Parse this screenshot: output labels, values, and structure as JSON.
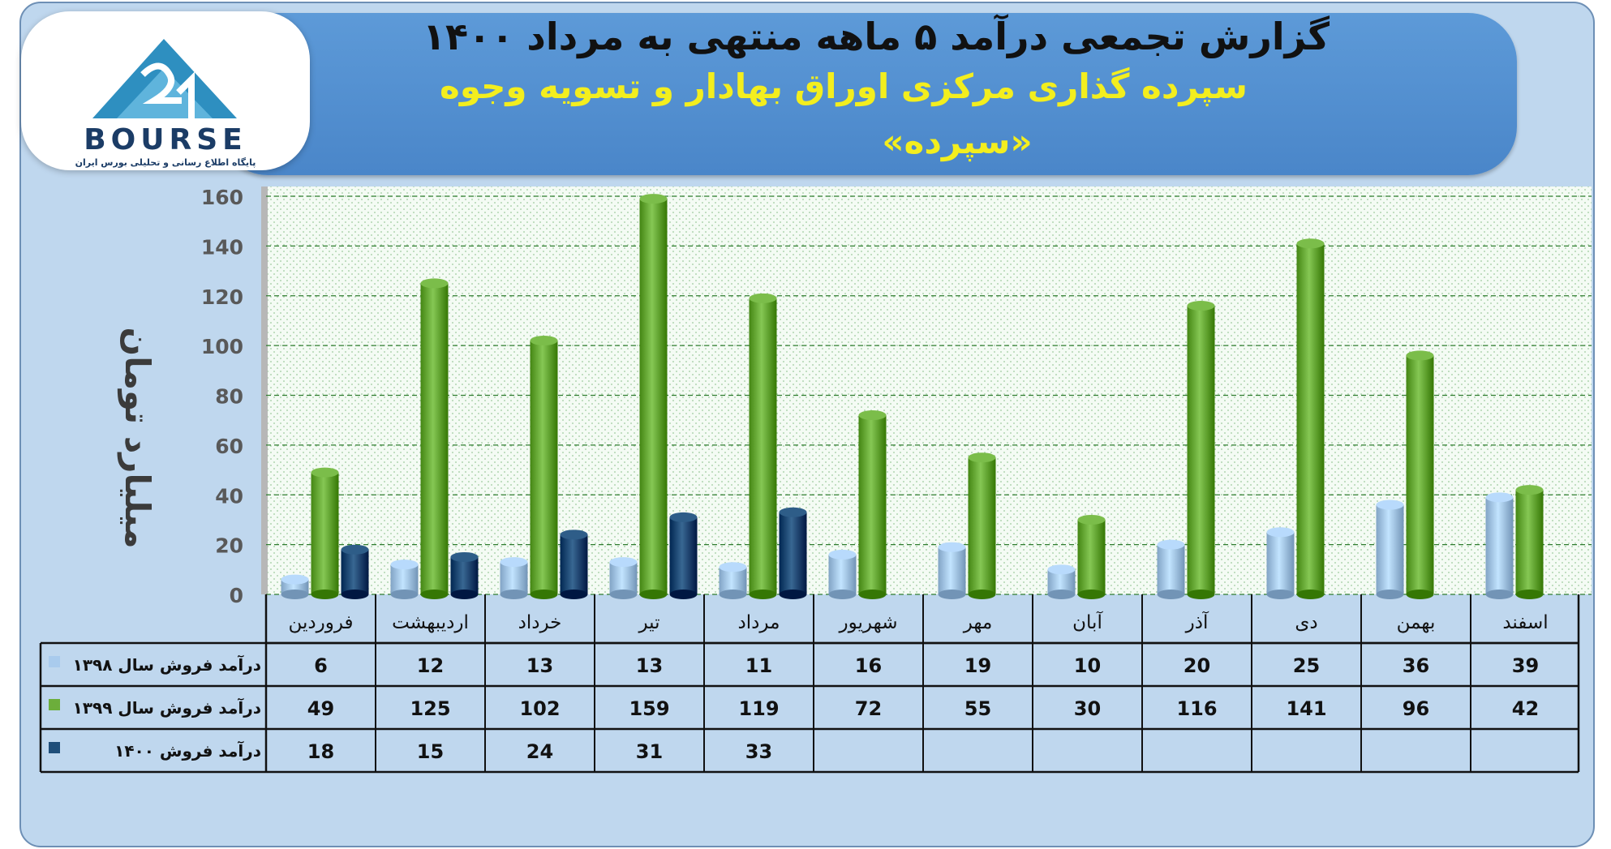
{
  "header": {
    "title": "گزارش تجمعی درآمد ۵ ماهه منتهی به مرداد ۱۴۰۰",
    "subtitle": "سپرده گذاری مرکزی اوراق بهادار و تسویه وجوه",
    "subtitle2": "«سپرده»"
  },
  "logo": {
    "text": "BOURSE",
    "tagline": "پایگاه اطلاع رسانی و تحلیلی بورس ایران"
  },
  "chart_data": {
    "type": "bar",
    "ylabel": "میلیارد تومان",
    "ylim": [
      0,
      160
    ],
    "yticks": [
      0,
      20,
      40,
      60,
      80,
      100,
      120,
      140,
      160
    ],
    "grid": true,
    "categories": [
      "فروردین",
      "اردیبهشت",
      "خرداد",
      "تیر",
      "مرداد",
      "شهریور",
      "مهر",
      "آبان",
      "آذر",
      "دی",
      "بهمن",
      "اسفند"
    ],
    "series": [
      {
        "name": "درآمد فروش سال ۱۳۹۸",
        "color": "#a9cbed",
        "values": [
          6,
          12,
          13,
          13,
          11,
          16,
          19,
          10,
          20,
          25,
          36,
          39
        ]
      },
      {
        "name": "درآمد فروش سال ۱۳۹۹",
        "color": "#6cae3b",
        "values": [
          49,
          125,
          102,
          159,
          119,
          72,
          55,
          30,
          116,
          141,
          96,
          42
        ]
      },
      {
        "name": "درآمد فروش ۱۴۰۰",
        "color": "#1f4e79",
        "values": [
          18,
          15,
          24,
          31,
          33,
          null,
          null,
          null,
          null,
          null,
          null,
          null
        ]
      }
    ]
  }
}
